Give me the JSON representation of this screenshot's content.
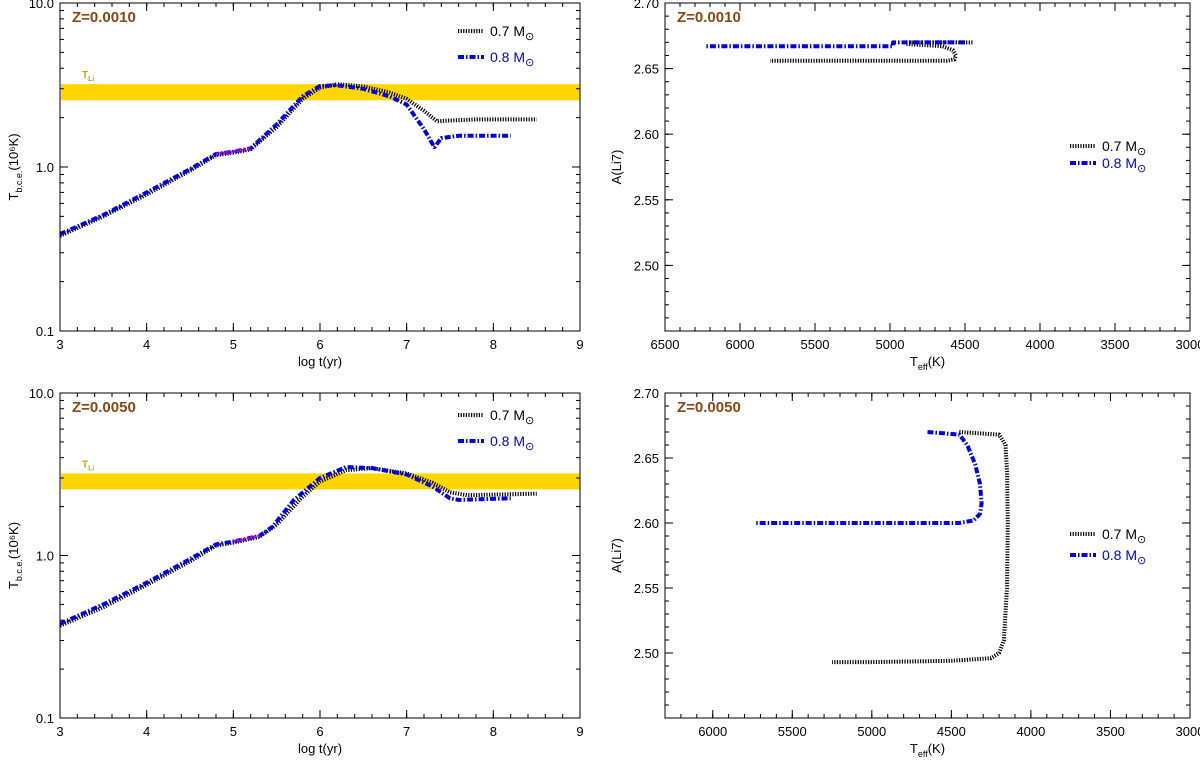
{
  "colors": {
    "mass_07": "#000000",
    "mass_08": "#0000dd",
    "band": "#ffd700",
    "band_label": "#c9a800",
    "magenta": "#cc00cc",
    "tag": "#8b4513"
  },
  "chart_data": [
    {
      "id": "tl",
      "type": "line",
      "panel_tag": "Z=0.0010",
      "xlabel": "log t(yr)",
      "ylabel": {
        "main": "T",
        "sub": "b.c.e.",
        "unit": "(10⁶K)"
      },
      "yscale": "log",
      "xlim": [
        3,
        9
      ],
      "ylim": [
        0.1,
        10
      ],
      "xticks": [
        "3",
        "4",
        "5",
        "6",
        "7",
        "8",
        "9"
      ],
      "yticks": [
        "0.1",
        "1.0",
        "10.0"
      ],
      "band": {
        "label": "T",
        "label_sub": "Li",
        "range": [
          2.55,
          3.2
        ]
      },
      "magenta_range": [
        4.8,
        5.2
      ],
      "series": [
        {
          "name": "0.7",
          "unit": "M",
          "sun": "⊙",
          "x": [
            3.0,
            3.5,
            4.0,
            4.5,
            4.8,
            5.0,
            5.2,
            5.5,
            5.8,
            6.0,
            6.2,
            6.5,
            6.8,
            7.0,
            7.2,
            7.35,
            7.5,
            7.8,
            8.5
          ],
          "y": [
            0.38,
            0.5,
            0.68,
            0.95,
            1.18,
            1.22,
            1.28,
            1.75,
            2.6,
            3.05,
            3.2,
            3.1,
            2.85,
            2.6,
            2.2,
            1.9,
            1.92,
            1.95,
            1.95
          ]
        },
        {
          "name": "0.8",
          "unit": "M",
          "sun": "⊙",
          "x": [
            3.0,
            3.5,
            4.0,
            4.5,
            4.8,
            5.0,
            5.2,
            5.5,
            5.8,
            6.0,
            6.2,
            6.5,
            6.8,
            7.0,
            7.2,
            7.32,
            7.4,
            7.6,
            8.2
          ],
          "y": [
            0.39,
            0.51,
            0.7,
            0.97,
            1.2,
            1.24,
            1.3,
            1.82,
            2.7,
            3.12,
            3.15,
            3.0,
            2.7,
            2.4,
            1.7,
            1.32,
            1.5,
            1.55,
            1.55
          ]
        }
      ]
    },
    {
      "id": "tr",
      "type": "line",
      "panel_tag": "Z=0.0010",
      "xlabel": {
        "main": "T",
        "sub": "eff",
        "unit": "(K)"
      },
      "ylabel": "A(Li7)",
      "xlim": [
        6500,
        3000
      ],
      "ylim": [
        2.45,
        2.7
      ],
      "xticks": [
        "6500",
        "6000",
        "5500",
        "5000",
        "4500",
        "4000",
        "3500",
        "3000"
      ],
      "yticks": [
        "2.50",
        "2.55",
        "2.60",
        "2.65",
        "2.70"
      ],
      "series": [
        {
          "name": "0.7",
          "unit": "M",
          "sun": "⊙",
          "x": [
            4450,
            4700,
            4900,
            4900,
            4650,
            4580,
            4560,
            4570,
            4620,
            5000,
            5800
          ],
          "y": [
            2.67,
            2.67,
            2.67,
            2.669,
            2.667,
            2.664,
            2.66,
            2.657,
            2.656,
            2.656,
            2.656
          ]
        },
        {
          "name": "0.8",
          "unit": "M",
          "sun": "⊙",
          "x": [
            4500,
            4980,
            4980,
            5300,
            6230
          ],
          "y": [
            2.67,
            2.67,
            2.667,
            2.667,
            2.667
          ]
        }
      ]
    },
    {
      "id": "bl",
      "type": "line",
      "panel_tag": "Z=0.0050",
      "xlabel": "log t(yr)",
      "ylabel": {
        "main": "T",
        "sub": "b.c.e.",
        "unit": "(10⁶K)"
      },
      "yscale": "log",
      "xlim": [
        3,
        9
      ],
      "ylim": [
        0.1,
        10
      ],
      "xticks": [
        "3",
        "4",
        "5",
        "6",
        "7",
        "8",
        "9"
      ],
      "yticks": [
        "0.1",
        "1.0",
        "10.0"
      ],
      "band": {
        "label": "T",
        "label_sub": "Li",
        "range": [
          2.55,
          3.2
        ]
      },
      "magenta_range": [
        4.85,
        5.35
      ],
      "series": [
        {
          "name": "0.7",
          "unit": "M",
          "sun": "⊙",
          "x": [
            3.0,
            3.5,
            4.0,
            4.5,
            4.8,
            5.0,
            5.3,
            5.5,
            5.8,
            6.0,
            6.3,
            6.6,
            7.0,
            7.3,
            7.5,
            7.7,
            8.5
          ],
          "y": [
            0.37,
            0.48,
            0.66,
            0.92,
            1.15,
            1.2,
            1.3,
            1.55,
            2.3,
            2.85,
            3.35,
            3.45,
            3.2,
            2.8,
            2.45,
            2.35,
            2.4
          ]
        },
        {
          "name": "0.8",
          "unit": "M",
          "sun": "⊙",
          "x": [
            3.0,
            3.5,
            4.0,
            4.5,
            4.8,
            5.0,
            5.3,
            5.45,
            5.7,
            6.0,
            6.3,
            6.6,
            7.0,
            7.3,
            7.5,
            7.6,
            8.2
          ],
          "y": [
            0.38,
            0.5,
            0.68,
            0.95,
            1.17,
            1.22,
            1.32,
            1.5,
            2.2,
            3.0,
            3.5,
            3.45,
            3.15,
            2.65,
            2.25,
            2.2,
            2.25
          ]
        }
      ]
    },
    {
      "id": "br",
      "type": "line",
      "panel_tag": "Z=0.0050",
      "xlabel": {
        "main": "T",
        "sub": "eff",
        "unit": "(K)"
      },
      "ylabel": "A(Li7)",
      "xlim": [
        6300,
        3000
      ],
      "ylim": [
        2.45,
        2.7
      ],
      "xticks": [
        "6000",
        "5500",
        "5000",
        "4500",
        "4000",
        "3500",
        "3000"
      ],
      "yticks": [
        "2.50",
        "2.55",
        "2.60",
        "2.65",
        "2.70"
      ],
      "series": [
        {
          "name": "0.7",
          "unit": "M",
          "sun": "⊙",
          "x": [
            4450,
            4200,
            4160,
            4150,
            4145,
            4150,
            4170,
            4200,
            4250,
            4500,
            5000,
            5250
          ],
          "y": [
            2.67,
            2.668,
            2.66,
            2.64,
            2.6,
            2.55,
            2.51,
            2.5,
            2.496,
            2.494,
            2.493,
            2.493
          ]
        },
        {
          "name": "0.8",
          "unit": "M",
          "sun": "⊙",
          "x": [
            4650,
            4450,
            4400,
            4350,
            4320,
            4310,
            4320,
            4360,
            4450,
            5000,
            5730
          ],
          "y": [
            2.67,
            2.668,
            2.66,
            2.645,
            2.63,
            2.615,
            2.607,
            2.602,
            2.6,
            2.6,
            2.6
          ]
        }
      ]
    }
  ]
}
